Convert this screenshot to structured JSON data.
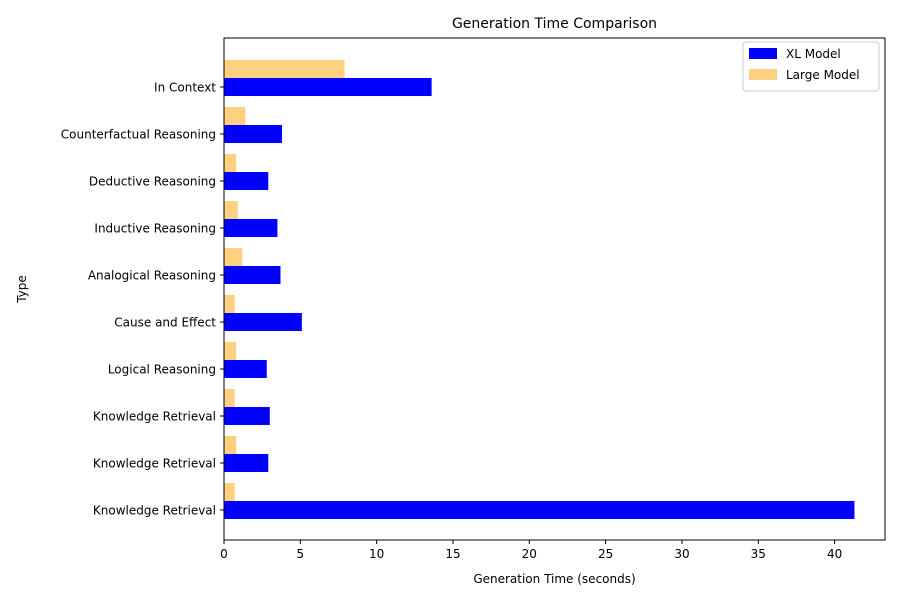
{
  "chart_data": {
    "type": "bar",
    "orientation": "horizontal",
    "title": "Generation Time Comparison",
    "xlabel": "Generation Time (seconds)",
    "ylabel": "Type",
    "xlim": [
      0,
      43.3
    ],
    "xticks": [
      0,
      5,
      10,
      15,
      20,
      25,
      30,
      35,
      40
    ],
    "grid": false,
    "legend_position": "top-right",
    "categories": [
      "In Context",
      "Counterfactual Reasoning",
      "Deductive Reasoning",
      "Inductive Reasoning",
      "Analogical Reasoning",
      "Cause and Effect",
      "Logical Reasoning",
      "Knowledge Retrieval",
      "Knowledge Retrieval",
      "Knowledge Retrieval"
    ],
    "series": [
      {
        "name": "XL Model",
        "color": "#0000ff",
        "values": [
          13.6,
          3.8,
          2.9,
          3.5,
          3.7,
          5.1,
          2.8,
          3.0,
          2.9,
          41.3
        ]
      },
      {
        "name": "Large Model",
        "color": "#ffd080",
        "values": [
          7.9,
          1.4,
          0.8,
          0.9,
          1.2,
          0.7,
          0.8,
          0.7,
          0.8,
          0.7
        ]
      }
    ]
  }
}
